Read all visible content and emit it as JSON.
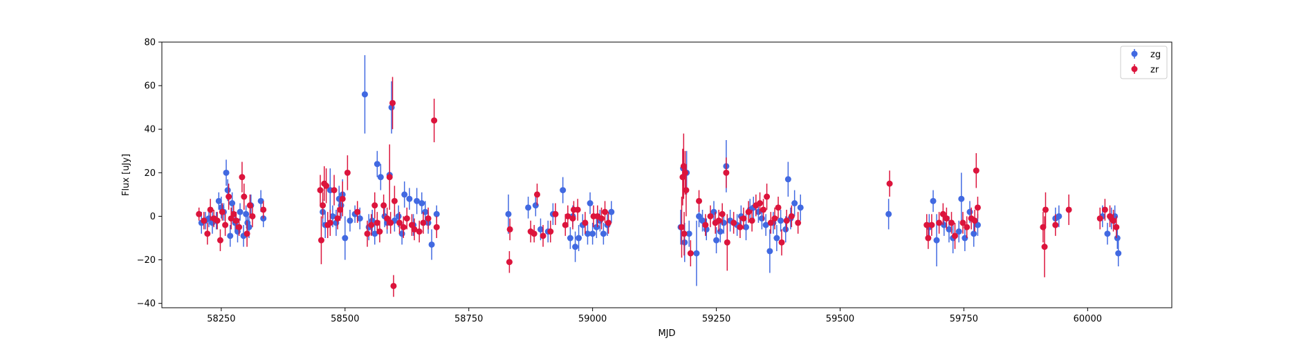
{
  "chart_data": {
    "type": "scatter",
    "title": "",
    "xlabel": "MJD",
    "ylabel": "Flux [uJy]",
    "xlim": [
      58130,
      60170
    ],
    "ylim": [
      -42,
      80
    ],
    "xticks": [
      58250,
      58500,
      58750,
      59000,
      59250,
      59500,
      59750,
      60000
    ],
    "yticks": [
      -40,
      -20,
      0,
      20,
      40,
      60,
      80
    ],
    "grid": false,
    "legend": "top-right",
    "series": [
      {
        "name": "zg",
        "color": "#4169e1",
        "points": [
          [
            58210,
            -3,
            5
          ],
          [
            58218,
            -2,
            4
          ],
          [
            58225,
            -1,
            4
          ],
          [
            58232,
            -3,
            5
          ],
          [
            58240,
            -2,
            4
          ],
          [
            58245,
            7,
            4
          ],
          [
            58250,
            4,
            5
          ],
          [
            58255,
            2,
            4
          ],
          [
            58260,
            20,
            6
          ],
          [
            58263,
            12,
            5
          ],
          [
            58268,
            -9,
            5
          ],
          [
            58272,
            6,
            5
          ],
          [
            58278,
            -3,
            4
          ],
          [
            58283,
            -7,
            5
          ],
          [
            58288,
            2,
            4
          ],
          [
            58295,
            -9,
            5
          ],
          [
            58300,
            1,
            4
          ],
          [
            58303,
            -3,
            4
          ],
          [
            58306,
            -5,
            5
          ],
          [
            58310,
            5,
            5
          ],
          [
            58330,
            7,
            5
          ],
          [
            58335,
            -1,
            4
          ],
          [
            58455,
            2,
            6
          ],
          [
            58460,
            -4,
            6
          ],
          [
            58470,
            12,
            10
          ],
          [
            58475,
            0,
            5
          ],
          [
            58482,
            -3,
            6
          ],
          [
            58488,
            8,
            6
          ],
          [
            58492,
            5,
            6
          ],
          [
            58495,
            10,
            7
          ],
          [
            58500,
            -10,
            10
          ],
          [
            58510,
            -2,
            5
          ],
          [
            58520,
            1,
            4
          ],
          [
            58530,
            -1,
            5
          ],
          [
            58540,
            56,
            18
          ],
          [
            58548,
            -5,
            6
          ],
          [
            58555,
            -2,
            5
          ],
          [
            58560,
            -8,
            5
          ],
          [
            58565,
            24,
            6
          ],
          [
            58572,
            18,
            6
          ],
          [
            58580,
            0,
            5
          ],
          [
            58585,
            -3,
            5
          ],
          [
            58590,
            19,
            7
          ],
          [
            58594,
            50,
            12
          ],
          [
            58600,
            -2,
            5
          ],
          [
            58608,
            0,
            5
          ],
          [
            58615,
            -8,
            5
          ],
          [
            58620,
            10,
            6
          ],
          [
            58630,
            8,
            5
          ],
          [
            58638,
            -4,
            5
          ],
          [
            58645,
            7,
            6
          ],
          [
            58655,
            6,
            5
          ],
          [
            58662,
            2,
            5
          ],
          [
            58668,
            -3,
            5
          ],
          [
            58675,
            -13,
            7
          ],
          [
            58685,
            1,
            4
          ],
          [
            58830,
            1,
            9
          ],
          [
            58870,
            4,
            5
          ],
          [
            58885,
            5,
            5
          ],
          [
            58895,
            -6,
            5
          ],
          [
            58910,
            -7,
            5
          ],
          [
            58920,
            1,
            5
          ],
          [
            58940,
            12,
            6
          ],
          [
            58955,
            -10,
            5
          ],
          [
            58960,
            0,
            5
          ],
          [
            58965,
            -14,
            7
          ],
          [
            58972,
            -10,
            6
          ],
          [
            58980,
            -4,
            5
          ],
          [
            58990,
            -8,
            5
          ],
          [
            58995,
            6,
            5
          ],
          [
            59000,
            -8,
            5
          ],
          [
            59008,
            -5,
            5
          ],
          [
            59015,
            -2,
            5
          ],
          [
            59022,
            -8,
            5
          ],
          [
            59030,
            -4,
            5
          ],
          [
            59038,
            2,
            5
          ],
          [
            59178,
            -5,
            8
          ],
          [
            59183,
            22,
            8
          ],
          [
            59186,
            -12,
            9
          ],
          [
            59190,
            20,
            10
          ],
          [
            59195,
            -8,
            6
          ],
          [
            59210,
            -17,
            15
          ],
          [
            59215,
            0,
            5
          ],
          [
            59222,
            -2,
            5
          ],
          [
            59230,
            -6,
            5
          ],
          [
            59245,
            2,
            5
          ],
          [
            59250,
            -11,
            6
          ],
          [
            59258,
            -7,
            5
          ],
          [
            59265,
            -3,
            5
          ],
          [
            59270,
            23,
            12
          ],
          [
            59278,
            -2,
            5
          ],
          [
            59292,
            -4,
            5
          ],
          [
            59300,
            0,
            5
          ],
          [
            59310,
            -5,
            6
          ],
          [
            59318,
            3,
            5
          ],
          [
            59325,
            4,
            5
          ],
          [
            59335,
            2,
            5
          ],
          [
            59342,
            -1,
            5
          ],
          [
            59350,
            -4,
            5
          ],
          [
            59358,
            -16,
            10
          ],
          [
            59365,
            -3,
            5
          ],
          [
            59372,
            -10,
            6
          ],
          [
            59380,
            -2,
            5
          ],
          [
            59390,
            -6,
            6
          ],
          [
            59395,
            17,
            8
          ],
          [
            59400,
            -1,
            5
          ],
          [
            59408,
            6,
            6
          ],
          [
            59420,
            4,
            6
          ],
          [
            59598,
            1,
            7
          ],
          [
            59680,
            -5,
            6
          ],
          [
            59688,
            7,
            5
          ],
          [
            59695,
            -11,
            12
          ],
          [
            59710,
            -4,
            5
          ],
          [
            59720,
            -6,
            6
          ],
          [
            59728,
            -10,
            7
          ],
          [
            59740,
            -7,
            5
          ],
          [
            59745,
            8,
            12
          ],
          [
            59752,
            -10,
            6
          ],
          [
            59762,
            2,
            5
          ],
          [
            59770,
            -8,
            6
          ],
          [
            59778,
            -4,
            5
          ],
          [
            59935,
            -1,
            5
          ],
          [
            59942,
            0,
            5
          ],
          [
            60030,
            0,
            5
          ],
          [
            60040,
            -8,
            5
          ],
          [
            60048,
            -1,
            5
          ],
          [
            60055,
            0,
            5
          ],
          [
            60060,
            -10,
            5
          ],
          [
            60062,
            -17,
            6
          ]
        ]
      },
      {
        "name": "zr",
        "color": "#dc143c",
        "points": [
          [
            58205,
            1,
            3
          ],
          [
            58215,
            -2,
            4
          ],
          [
            58222,
            -8,
            5
          ],
          [
            58228,
            3,
            5
          ],
          [
            58235,
            -1,
            4
          ],
          [
            58242,
            -2,
            4
          ],
          [
            58248,
            -11,
            5
          ],
          [
            58252,
            2,
            4
          ],
          [
            58258,
            -4,
            5
          ],
          [
            58265,
            9,
            6
          ],
          [
            58270,
            -1,
            5
          ],
          [
            58275,
            1,
            4
          ],
          [
            58280,
            -2,
            4
          ],
          [
            58286,
            -5,
            4
          ],
          [
            58292,
            18,
            7
          ],
          [
            58296,
            9,
            6
          ],
          [
            58302,
            -8,
            6
          ],
          [
            58308,
            5,
            5
          ],
          [
            58313,
            0,
            5
          ],
          [
            58335,
            3,
            4
          ],
          [
            58450,
            12,
            7
          ],
          [
            58452,
            -11,
            11
          ],
          [
            58455,
            5,
            6
          ],
          [
            58458,
            15,
            8
          ],
          [
            58462,
            14,
            8
          ],
          [
            58465,
            -4,
            6
          ],
          [
            58470,
            -3,
            6
          ],
          [
            58478,
            12,
            7
          ],
          [
            58485,
            -1,
            5
          ],
          [
            58490,
            3,
            5
          ],
          [
            58495,
            8,
            8
          ],
          [
            58505,
            20,
            8
          ],
          [
            58525,
            2,
            5
          ],
          [
            58545,
            -8,
            6
          ],
          [
            58553,
            -4,
            5
          ],
          [
            58560,
            5,
            6
          ],
          [
            58565,
            -3,
            5
          ],
          [
            58570,
            -7,
            5
          ],
          [
            58578,
            5,
            5
          ],
          [
            58585,
            -1,
            5
          ],
          [
            58590,
            18,
            15
          ],
          [
            58592,
            -3,
            5
          ],
          [
            58596,
            52,
            12
          ],
          [
            58598,
            -32,
            5
          ],
          [
            58600,
            7,
            7
          ],
          [
            58610,
            -3,
            5
          ],
          [
            58618,
            -5,
            5
          ],
          [
            58625,
            -1,
            5
          ],
          [
            58635,
            -4,
            5
          ],
          [
            58640,
            -6,
            5
          ],
          [
            58650,
            -7,
            5
          ],
          [
            58658,
            -3,
            5
          ],
          [
            58668,
            -1,
            5
          ],
          [
            58680,
            44,
            10
          ],
          [
            58685,
            -5,
            5
          ],
          [
            58832,
            -21,
            5
          ],
          [
            58833,
            -6,
            5
          ],
          [
            58875,
            -7,
            5
          ],
          [
            58882,
            -8,
            4
          ],
          [
            58888,
            10,
            5
          ],
          [
            58900,
            -9,
            5
          ],
          [
            58915,
            -7,
            5
          ],
          [
            58925,
            1,
            5
          ],
          [
            58945,
            -4,
            5
          ],
          [
            58950,
            0,
            5
          ],
          [
            58960,
            -1,
            5
          ],
          [
            58962,
            3,
            4
          ],
          [
            58970,
            3,
            5
          ],
          [
            58985,
            -3,
            5
          ],
          [
            59002,
            0,
            5
          ],
          [
            59010,
            0,
            5
          ],
          [
            59018,
            -1,
            5
          ],
          [
            59025,
            2,
            5
          ],
          [
            59032,
            -3,
            5
          ],
          [
            59180,
            -5,
            14
          ],
          [
            59182,
            18,
            13
          ],
          [
            59184,
            23,
            15
          ],
          [
            59185,
            -8,
            10
          ],
          [
            59187,
            20,
            10
          ],
          [
            59189,
            12,
            12
          ],
          [
            59198,
            -17,
            6
          ],
          [
            59215,
            7,
            5
          ],
          [
            59228,
            -4,
            5
          ],
          [
            59238,
            0,
            5
          ],
          [
            59248,
            -3,
            5
          ],
          [
            59255,
            -2,
            5
          ],
          [
            59262,
            1,
            5
          ],
          [
            59270,
            20,
            7
          ],
          [
            59272,
            -12,
            13
          ],
          [
            59285,
            -3,
            5
          ],
          [
            59298,
            -5,
            5
          ],
          [
            59305,
            -1,
            5
          ],
          [
            59315,
            2,
            5
          ],
          [
            59322,
            -2,
            5
          ],
          [
            59330,
            5,
            5
          ],
          [
            59338,
            6,
            5
          ],
          [
            59345,
            3,
            5
          ],
          [
            59352,
            9,
            6
          ],
          [
            59360,
            -3,
            5
          ],
          [
            59368,
            -1,
            5
          ],
          [
            59375,
            4,
            5
          ],
          [
            59382,
            -12,
            6
          ],
          [
            59392,
            -2,
            5
          ],
          [
            59402,
            0,
            5
          ],
          [
            59415,
            -3,
            5
          ],
          [
            59600,
            15,
            6
          ],
          [
            59675,
            -4,
            5
          ],
          [
            59678,
            -10,
            5
          ],
          [
            59685,
            -4,
            5
          ],
          [
            59700,
            -3,
            5
          ],
          [
            59708,
            1,
            5
          ],
          [
            59715,
            -1,
            5
          ],
          [
            59725,
            -3,
            5
          ],
          [
            59732,
            -9,
            6
          ],
          [
            59748,
            -3,
            5
          ],
          [
            59756,
            -5,
            5
          ],
          [
            59765,
            -1,
            5
          ],
          [
            59772,
            -2,
            5
          ],
          [
            59775,
            21,
            8
          ],
          [
            59778,
            4,
            5
          ],
          [
            59910,
            -5,
            7
          ],
          [
            59913,
            -14,
            14
          ],
          [
            59915,
            3,
            8
          ],
          [
            59935,
            -4,
            5
          ],
          [
            59962,
            3,
            7
          ],
          [
            60025,
            -1,
            5
          ],
          [
            60035,
            3,
            5
          ],
          [
            60045,
            0,
            5
          ],
          [
            60052,
            -2,
            5
          ],
          [
            60058,
            -5,
            5
          ]
        ]
      }
    ]
  }
}
